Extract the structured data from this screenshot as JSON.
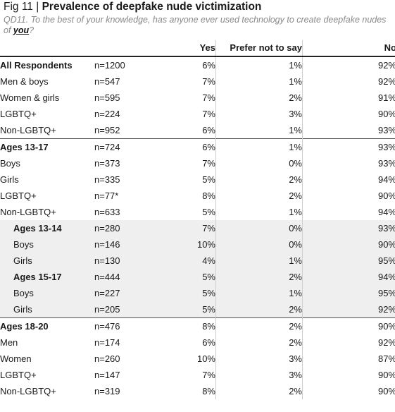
{
  "header": {
    "fig": "Fig 11",
    "separator": " | ",
    "title": "Prevalence of deepfake nude victimization",
    "question_prefix": "QD11. To the best of your knowledge, has anyone ever used technology to create deepfake nudes of ",
    "question_em": "you",
    "question_suffix": "?"
  },
  "table": {
    "columns": {
      "yes": "Yes",
      "prefer": "Prefer not to say",
      "no": "No"
    },
    "rows": [
      {
        "label": "All Respondents",
        "n": "n=1200",
        "yes": "6%",
        "prefer": "1%",
        "no": "92%",
        "style": "bold"
      },
      {
        "label": "Men & boys",
        "n": "n=547",
        "yes": "7%",
        "prefer": "1%",
        "no": "92%",
        "style": ""
      },
      {
        "label": "Women & girls",
        "n": "n=595",
        "yes": "7%",
        "prefer": "2%",
        "no": "91%",
        "style": ""
      },
      {
        "label": "LGBTQ+",
        "n": "n=224",
        "yes": "7%",
        "prefer": "3%",
        "no": "90%",
        "style": ""
      },
      {
        "label": "Non-LGBTQ+",
        "n": "n=952",
        "yes": "6%",
        "prefer": "1%",
        "no": "93%",
        "style": ""
      },
      {
        "label": "Ages 13-17",
        "n": "n=724",
        "yes": "6%",
        "prefer": "1%",
        "no": "93%",
        "style": "bold sec-start"
      },
      {
        "label": "Boys",
        "n": "n=373",
        "yes": "7%",
        "prefer": "0%",
        "no": "93%",
        "style": ""
      },
      {
        "label": "Girls",
        "n": "n=335",
        "yes": "5%",
        "prefer": "2%",
        "no": "94%",
        "style": ""
      },
      {
        "label": "LGBTQ+",
        "n": "n=77*",
        "yes": "8%",
        "prefer": "2%",
        "no": "90%",
        "style": ""
      },
      {
        "label": "Non-LGBTQ+",
        "n": "n=633",
        "yes": "5%",
        "prefer": "1%",
        "no": "94%",
        "style": ""
      },
      {
        "label": "Ages 13-14",
        "n": "n=280",
        "yes": "7%",
        "prefer": "0%",
        "no": "93%",
        "style": "bold indent shade"
      },
      {
        "label": "Boys",
        "n": "n=146",
        "yes": "10%",
        "prefer": "0%",
        "no": "90%",
        "style": "sub shade"
      },
      {
        "label": "Girls",
        "n": "n=130",
        "yes": "4%",
        "prefer": "1%",
        "no": "95%",
        "style": "sub shade"
      },
      {
        "label": "Ages 15-17",
        "n": "n=444",
        "yes": "5%",
        "prefer": "2%",
        "no": "94%",
        "style": "bold indent shade"
      },
      {
        "label": "Boys",
        "n": "n=227",
        "yes": "5%",
        "prefer": "1%",
        "no": "95%",
        "style": "sub shade"
      },
      {
        "label": "Girls",
        "n": "n=205",
        "yes": "5%",
        "prefer": "2%",
        "no": "92%",
        "style": "sub shade"
      },
      {
        "label": "Ages 18-20",
        "n": "n=476",
        "yes": "8%",
        "prefer": "2%",
        "no": "90%",
        "style": "bold sec-start"
      },
      {
        "label": "Men",
        "n": "n=174",
        "yes": "6%",
        "prefer": "2%",
        "no": "92%",
        "style": ""
      },
      {
        "label": "Women",
        "n": "n=260",
        "yes": "10%",
        "prefer": "3%",
        "no": "87%",
        "style": ""
      },
      {
        "label": "LGBTQ+",
        "n": "n=147",
        "yes": "7%",
        "prefer": "3%",
        "no": "90%",
        "style": ""
      },
      {
        "label": "Non-LGBTQ+",
        "n": "n=319",
        "yes": "8%",
        "prefer": "2%",
        "no": "90%",
        "style": ""
      }
    ]
  }
}
